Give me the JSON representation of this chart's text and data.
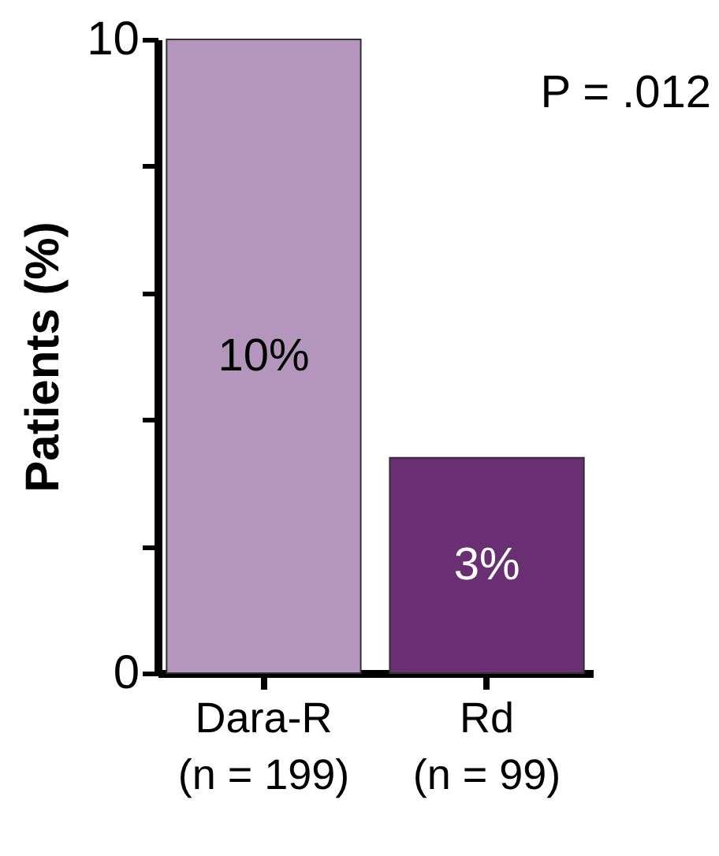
{
  "chart_data": {
    "type": "bar",
    "ylabel": "Patients (%)",
    "categories": [
      "Dara-R\n(n = 199)",
      "Rd\n(n = 99)"
    ],
    "values": [
      10,
      3.4
    ],
    "colors": [
      "#b496bc",
      "#6a2e72"
    ],
    "value_labels": [
      "10%",
      "3%"
    ],
    "ylim": [
      0,
      10
    ],
    "yticks": [
      0,
      {
        "value": 2,
        "label": null
      },
      {
        "value": 4,
        "label": null
      },
      {
        "value": 6,
        "label": null
      },
      {
        "value": 8,
        "label": null
      },
      10
    ],
    "annotations": [
      "P = .012"
    ],
    "grid": false
  }
}
